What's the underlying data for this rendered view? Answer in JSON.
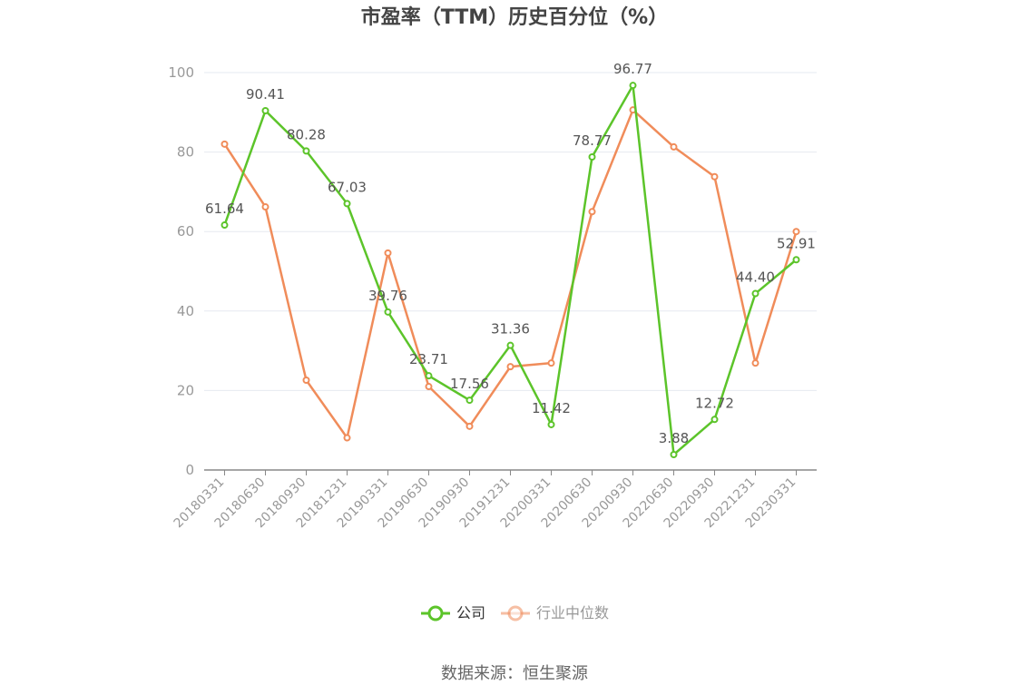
{
  "chart_data": {
    "type": "line",
    "title": "市盈率（TTM）历史百分位（%）",
    "source": "数据来源：恒生聚源",
    "categories": [
      "20180331",
      "20180630",
      "20180930",
      "20181231",
      "20190331",
      "20190630",
      "20190930",
      "20191231",
      "20200331",
      "20200630",
      "20200930",
      "20220630",
      "20220930",
      "20221231",
      "20230331"
    ],
    "ylim": [
      0,
      100
    ],
    "yticks": [
      0,
      20,
      40,
      60,
      80,
      100
    ],
    "grid": true,
    "legend_position": "bottom",
    "series": [
      {
        "name": "公司",
        "color": "#5cc42a",
        "values": [
          61.64,
          90.41,
          80.28,
          67.03,
          39.76,
          23.71,
          17.56,
          31.36,
          11.42,
          78.77,
          96.77,
          3.88,
          12.72,
          44.4,
          52.91
        ],
        "labels": [
          "61.64",
          "90.41",
          "80.28",
          "67.03",
          "39.76",
          "23.71",
          "17.56",
          "31.36",
          "11.42",
          "78.77",
          "96.77",
          "3.88",
          "12.72",
          "44.40",
          "52.91"
        ]
      },
      {
        "name": "行业中位数",
        "color": "#f08c5a",
        "values": [
          82,
          66.2,
          22.6,
          8.1,
          54.6,
          21.0,
          11.0,
          26.0,
          26.9,
          65.0,
          90.6,
          81.3,
          73.8,
          26.9,
          60.0
        ]
      }
    ]
  }
}
